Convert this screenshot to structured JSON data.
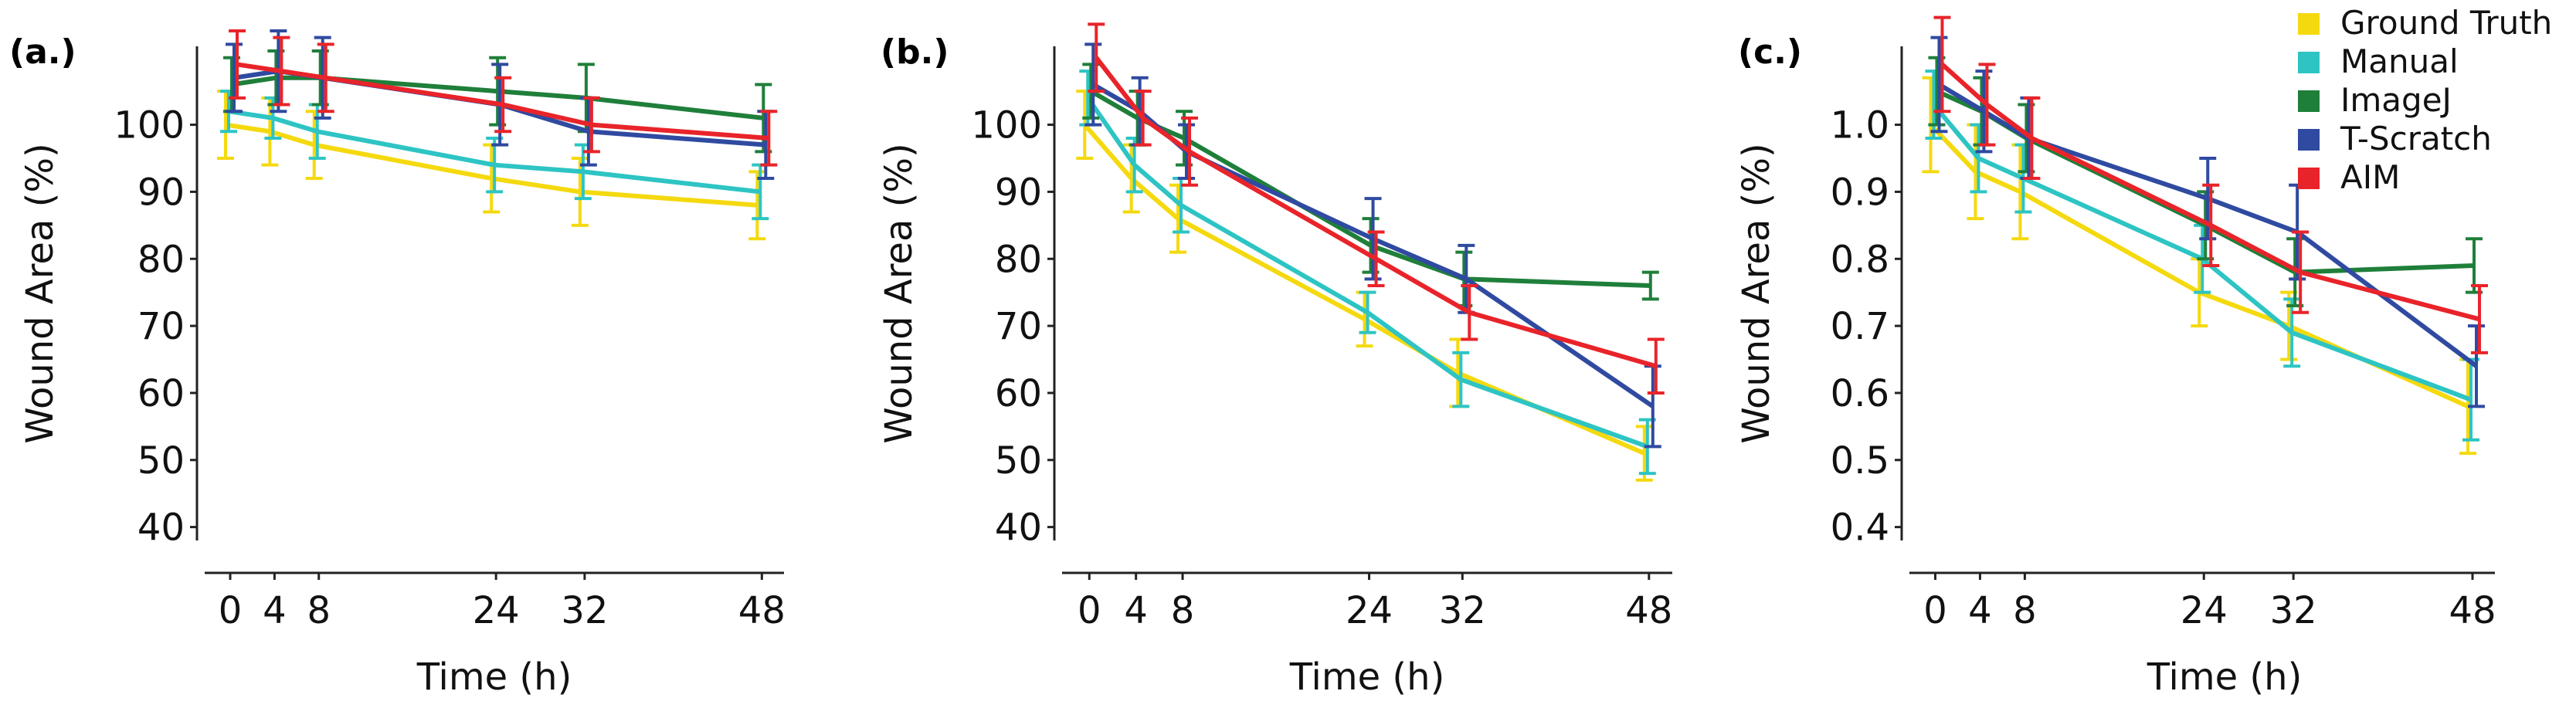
{
  "legend": [
    {
      "name": "Ground Truth",
      "color": "#f5d90f"
    },
    {
      "name": "Manual",
      "color": "#2ec4c4"
    },
    {
      "name": "ImageJ",
      "color": "#1f7f3a"
    },
    {
      "name": "T-Scratch",
      "color": "#2f4aa0"
    },
    {
      "name": "AIM",
      "color": "#e8242a"
    }
  ],
  "chart_data": [
    {
      "type": "line",
      "label": "(a.)",
      "xlabel": "Time (h)",
      "ylabel": "Wound Area (%)",
      "x": [
        0,
        4,
        8,
        24,
        32,
        48
      ],
      "xticks": [
        0,
        4,
        8,
        24,
        32,
        48
      ],
      "xlim": [
        -3,
        50
      ],
      "yticks": [
        40,
        50,
        60,
        70,
        80,
        90,
        100
      ],
      "ytick_labels": [
        "40",
        "50",
        "60",
        "70",
        "80",
        "90",
        "100"
      ],
      "ylim": [
        38,
        114
      ],
      "series": [
        {
          "name": "Ground Truth",
          "values": [
            100,
            99,
            97,
            92,
            90,
            88
          ],
          "err": [
            5,
            5,
            5,
            5,
            5,
            5
          ]
        },
        {
          "name": "Manual",
          "values": [
            102,
            101,
            99,
            94,
            93,
            90
          ],
          "err": [
            3,
            3,
            4,
            4,
            4,
            4
          ]
        },
        {
          "name": "ImageJ",
          "values": [
            106,
            107,
            107,
            105,
            104,
            101
          ],
          "err": [
            4,
            4,
            4,
            5,
            5,
            5
          ]
        },
        {
          "name": "T-Scratch",
          "values": [
            107,
            108,
            107,
            103,
            99,
            97
          ],
          "err": [
            5,
            6,
            6,
            6,
            5,
            5
          ]
        },
        {
          "name": "AIM",
          "values": [
            109,
            108,
            107,
            103,
            100,
            98
          ],
          "err": [
            5,
            5,
            5,
            4,
            4,
            4
          ]
        }
      ]
    },
    {
      "type": "line",
      "label": "(b.)",
      "xlabel": "Time (h)",
      "ylabel": "Wound Area (%)",
      "x": [
        0,
        4,
        8,
        24,
        32,
        48
      ],
      "xticks": [
        0,
        4,
        8,
        24,
        32,
        48
      ],
      "xlim": [
        -3,
        50
      ],
      "yticks": [
        40,
        50,
        60,
        70,
        80,
        90,
        100
      ],
      "ytick_labels": [
        "40",
        "50",
        "60",
        "70",
        "80",
        "90",
        "100"
      ],
      "ylim": [
        38,
        114
      ],
      "series": [
        {
          "name": "Ground Truth",
          "values": [
            100,
            92,
            86,
            71,
            63,
            51
          ],
          "err": [
            5,
            5,
            5,
            4,
            5,
            4
          ]
        },
        {
          "name": "Manual",
          "values": [
            104,
            94,
            88,
            72,
            62,
            52
          ],
          "err": [
            4,
            4,
            4,
            3,
            4,
            4
          ]
        },
        {
          "name": "ImageJ",
          "values": [
            105,
            101,
            98,
            82,
            77,
            76
          ],
          "err": [
            4,
            4,
            4,
            4,
            4,
            2
          ]
        },
        {
          "name": "T-Scratch",
          "values": [
            106,
            102,
            96,
            83,
            77,
            58
          ],
          "err": [
            6,
            5,
            4,
            6,
            5,
            6
          ]
        },
        {
          "name": "AIM",
          "values": [
            110,
            101,
            96,
            80,
            72,
            64
          ],
          "err": [
            5,
            4,
            5,
            4,
            4,
            4
          ]
        }
      ]
    },
    {
      "type": "line",
      "label": "(c.)",
      "xlabel": "Time (h)",
      "ylabel": "Wound Area (%)",
      "x": [
        0,
        4,
        8,
        24,
        32,
        48
      ],
      "xticks": [
        0,
        4,
        8,
        24,
        32,
        48
      ],
      "xlim": [
        -3,
        50
      ],
      "yticks": [
        0.4,
        0.5,
        0.6,
        0.7,
        0.8,
        0.9,
        1.0
      ],
      "ytick_labels": [
        "0.4",
        "0.5",
        "0.6",
        "0.7",
        "0.8",
        "0.9",
        "1.0"
      ],
      "ylim": [
        0.38,
        1.14
      ],
      "series": [
        {
          "name": "Ground Truth",
          "values": [
            1.0,
            0.93,
            0.9,
            0.75,
            0.7,
            0.58
          ],
          "err": [
            0.07,
            0.07,
            0.07,
            0.05,
            0.05,
            0.07
          ]
        },
        {
          "name": "Manual",
          "values": [
            1.03,
            0.95,
            0.92,
            0.8,
            0.69,
            0.59
          ],
          "err": [
            0.05,
            0.05,
            0.05,
            0.05,
            0.05,
            0.06
          ]
        },
        {
          "name": "ImageJ",
          "values": [
            1.05,
            1.02,
            0.98,
            0.85,
            0.78,
            0.79
          ],
          "err": [
            0.05,
            0.05,
            0.05,
            0.05,
            0.05,
            0.04
          ]
        },
        {
          "name": "T-Scratch",
          "values": [
            1.06,
            1.02,
            0.98,
            0.89,
            0.84,
            0.64
          ],
          "err": [
            0.07,
            0.06,
            0.06,
            0.06,
            0.07,
            0.06
          ]
        },
        {
          "name": "AIM",
          "values": [
            1.09,
            1.03,
            0.98,
            0.85,
            0.78,
            0.71
          ],
          "err": [
            0.07,
            0.06,
            0.06,
            0.06,
            0.06,
            0.05
          ]
        }
      ]
    }
  ]
}
